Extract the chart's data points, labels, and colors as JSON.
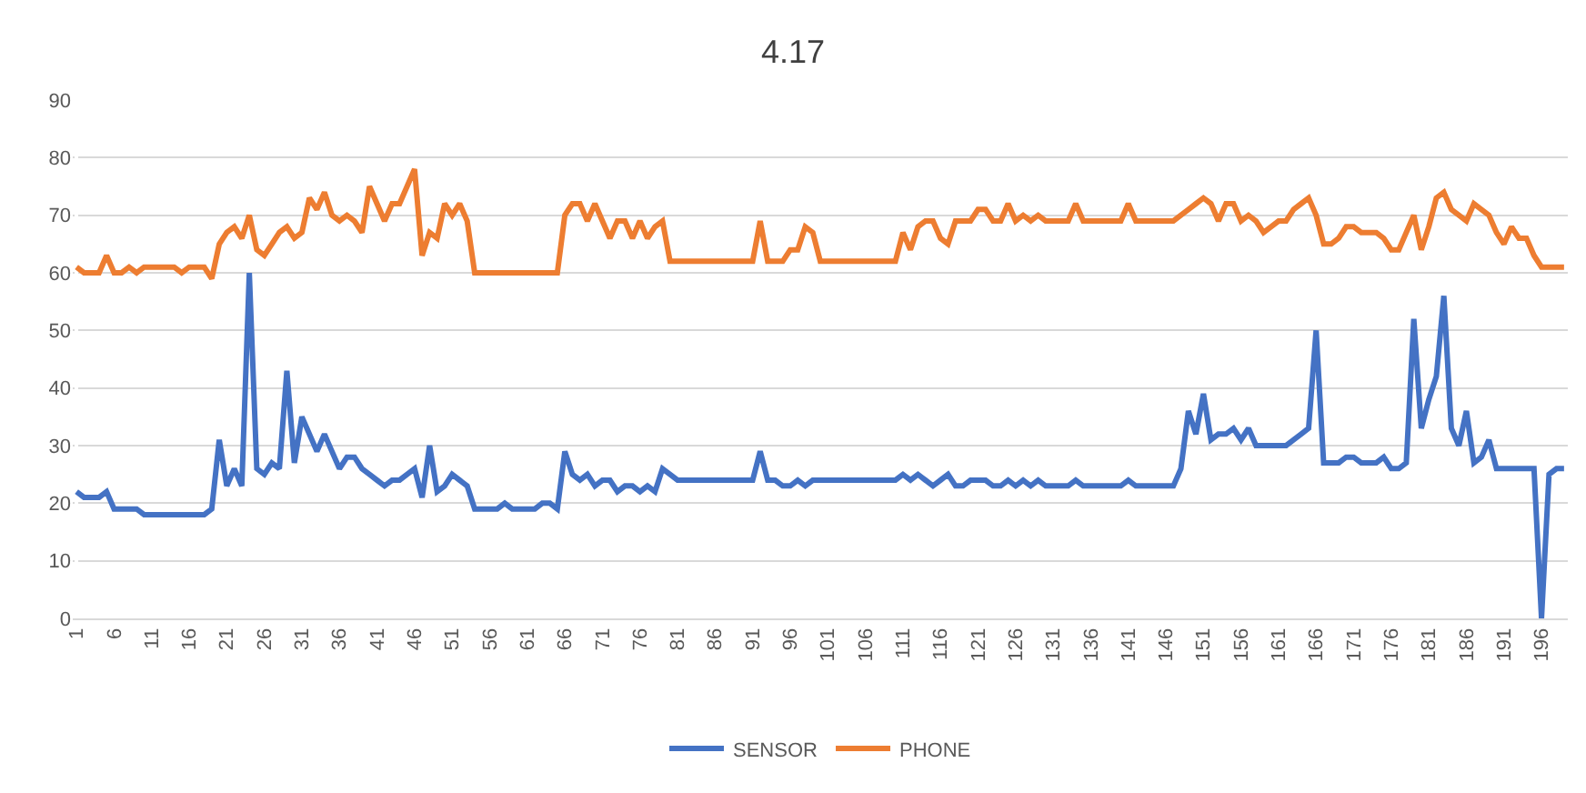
{
  "chart_data": {
    "type": "line",
    "title": "4.17",
    "categories": [
      "1",
      null,
      null,
      null,
      null,
      "6",
      null,
      null,
      null,
      null,
      "11",
      null,
      null,
      null,
      null,
      "16",
      null,
      null,
      null,
      null,
      "21",
      null,
      null,
      null,
      null,
      "26",
      null,
      null,
      null,
      null,
      "31",
      null,
      null,
      null,
      null,
      "36",
      null,
      null,
      null,
      null,
      "41",
      null,
      null,
      null,
      null,
      "46",
      null,
      null,
      null,
      null,
      "51",
      null,
      null,
      null,
      null,
      "56",
      null,
      null,
      null,
      null,
      "61",
      null,
      null,
      null,
      null,
      "66",
      null,
      null,
      null,
      null,
      "71",
      null,
      null,
      null,
      null,
      "76",
      null,
      null,
      null,
      null,
      "81",
      null,
      null,
      null,
      null,
      "86",
      null,
      null,
      null,
      null,
      "91",
      null,
      null,
      null,
      null,
      "96",
      null,
      null,
      null,
      null,
      "101",
      null,
      null,
      null,
      null,
      "106",
      null,
      null,
      null,
      null,
      "111",
      null,
      null,
      null,
      null,
      "116",
      null,
      null,
      null,
      null,
      "121",
      null,
      null,
      null,
      null,
      "126",
      null,
      null,
      null,
      null,
      "131",
      null,
      null,
      null,
      null,
      "136",
      null,
      null,
      null,
      null,
      "141",
      null,
      null,
      null,
      null,
      "146",
      null,
      null,
      null,
      null,
      "151",
      null,
      null,
      null,
      null,
      "156",
      null,
      null,
      null,
      null,
      "161",
      null,
      null,
      null,
      null,
      "166",
      null,
      null,
      null,
      null,
      "171",
      null,
      null,
      null,
      null,
      "176",
      null,
      null,
      null,
      null,
      "181",
      null,
      null,
      null,
      null,
      "186",
      null,
      null,
      null,
      null,
      "191",
      null,
      null,
      null,
      null,
      "196",
      null,
      null,
      null
    ],
    "series": [
      {
        "name": "SENSOR",
        "color": "#4472c4",
        "values": [
          22,
          21,
          21,
          21,
          22,
          19,
          19,
          19,
          19,
          18,
          18,
          18,
          18,
          18,
          18,
          18,
          18,
          18,
          19,
          31,
          23,
          26,
          23,
          60,
          26,
          25,
          27,
          26,
          43,
          27,
          35,
          32,
          29,
          32,
          29,
          26,
          28,
          28,
          26,
          25,
          24,
          23,
          24,
          24,
          25,
          26,
          21,
          30,
          22,
          23,
          25,
          24,
          23,
          19,
          19,
          19,
          19,
          20,
          19,
          19,
          19,
          19,
          20,
          20,
          19,
          29,
          25,
          24,
          25,
          23,
          24,
          24,
          22,
          23,
          23,
          22,
          23,
          22,
          26,
          25,
          24,
          24,
          24,
          24,
          24,
          24,
          24,
          24,
          24,
          24,
          24,
          29,
          24,
          24,
          23,
          23,
          24,
          23,
          24,
          24,
          24,
          24,
          24,
          24,
          24,
          24,
          24,
          24,
          24,
          24,
          25,
          24,
          25,
          24,
          23,
          24,
          25,
          23,
          23,
          24,
          24,
          24,
          23,
          23,
          24,
          23,
          24,
          23,
          24,
          23,
          23,
          23,
          23,
          24,
          23,
          23,
          23,
          23,
          23,
          23,
          24,
          23,
          23,
          23,
          23,
          23,
          23,
          26,
          36,
          32,
          39,
          31,
          32,
          32,
          33,
          31,
          33,
          30,
          30,
          30,
          30,
          30,
          31,
          32,
          33,
          50,
          27,
          27,
          27,
          28,
          28,
          27,
          27,
          27,
          28,
          26,
          26,
          27,
          52,
          33,
          38,
          42,
          56,
          33,
          30,
          36,
          27,
          28,
          31,
          26,
          26,
          26,
          26,
          26,
          26,
          0,
          25,
          26,
          26
        ]
      },
      {
        "name": "PHONE",
        "color": "#ed7d31",
        "values": [
          61,
          60,
          60,
          60,
          63,
          60,
          60,
          61,
          60,
          61,
          61,
          61,
          61,
          61,
          60,
          61,
          61,
          61,
          59,
          65,
          67,
          68,
          66,
          70,
          64,
          63,
          65,
          67,
          68,
          66,
          67,
          73,
          71,
          74,
          70,
          69,
          70,
          69,
          67,
          75,
          72,
          69,
          72,
          72,
          75,
          78,
          63,
          67,
          66,
          72,
          70,
          72,
          69,
          60,
          60,
          60,
          60,
          60,
          60,
          60,
          60,
          60,
          60,
          60,
          60,
          70,
          72,
          72,
          69,
          72,
          69,
          66,
          69,
          69,
          66,
          69,
          66,
          68,
          69,
          62,
          62,
          62,
          62,
          62,
          62,
          62,
          62,
          62,
          62,
          62,
          62,
          69,
          62,
          62,
          62,
          64,
          64,
          68,
          67,
          62,
          62,
          62,
          62,
          62,
          62,
          62,
          62,
          62,
          62,
          62,
          67,
          64,
          68,
          69,
          69,
          66,
          65,
          69,
          69,
          69,
          71,
          71,
          69,
          69,
          72,
          69,
          70,
          69,
          70,
          69,
          69,
          69,
          69,
          72,
          69,
          69,
          69,
          69,
          69,
          69,
          72,
          69,
          69,
          69,
          69,
          69,
          69,
          70,
          71,
          72,
          73,
          72,
          69,
          72,
          72,
          69,
          70,
          69,
          67,
          68,
          69,
          69,
          71,
          72,
          73,
          70,
          65,
          65,
          66,
          68,
          68,
          67,
          67,
          67,
          66,
          64,
          64,
          67,
          70,
          64,
          68,
          73,
          74,
          71,
          70,
          69,
          72,
          71,
          70,
          67,
          65,
          68,
          66,
          66,
          63,
          61,
          61,
          61,
          61
        ]
      }
    ],
    "ylim": [
      0,
      90
    ],
    "yticks": [
      0,
      10,
      20,
      30,
      40,
      50,
      60,
      70,
      80,
      90
    ],
    "grid": "y",
    "legend": "bottom",
    "marker": "none",
    "line_style": "solid"
  }
}
